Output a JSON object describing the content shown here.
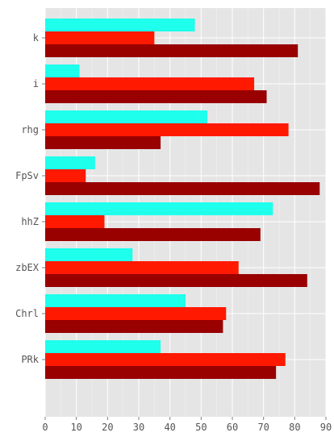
{
  "chart_data": {
    "type": "bar",
    "orientation": "horizontal",
    "title": "",
    "xlabel": "",
    "ylabel": "",
    "categories": [
      "k",
      "i",
      "rhg",
      "FpSv",
      "hhZ",
      "zbEX",
      "Chrl",
      "PRk"
    ],
    "xlim": [
      0,
      90
    ],
    "x_ticks": [
      "0",
      "10",
      "20",
      "30",
      "40",
      "50",
      "60",
      "70",
      "80",
      "90"
    ],
    "grid": true,
    "legend": "none",
    "series": [
      {
        "color": "#1effec",
        "values": [
          48,
          11,
          52,
          16,
          73,
          28,
          45,
          37
        ]
      },
      {
        "color": "#ff1900",
        "values": [
          35,
          67,
          78,
          13,
          19,
          62,
          58,
          77
        ]
      },
      {
        "color": "#990000",
        "values": [
          81,
          71,
          37,
          88,
          69,
          84,
          57,
          74
        ]
      }
    ],
    "colors": {
      "panel_background": "#e5e5e5",
      "gridline": "#ffffff"
    }
  }
}
